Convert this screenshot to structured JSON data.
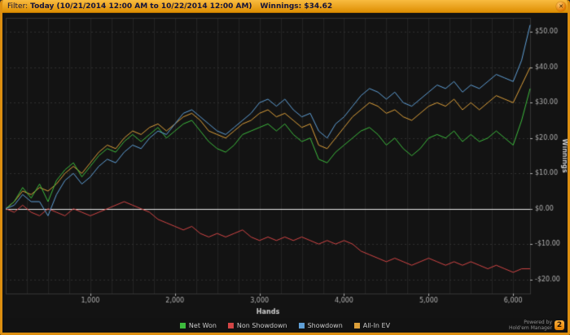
{
  "window": {
    "icons": {
      "close": "✕"
    }
  },
  "filter_bar": {
    "prefix": "Filter:",
    "range": "Today (10/21/2014 12:00 AM to 10/22/2014 12:00 AM)",
    "winnings": "Winnings: $34.62"
  },
  "chart_data": {
    "type": "line",
    "title": "",
    "xlabel": "Hands",
    "ylabel": "Winnings",
    "xlim": [
      0,
      6200
    ],
    "ylim": [
      -24,
      54
    ],
    "x_step": 100,
    "x_ticks": [
      1000,
      2000,
      3000,
      4000,
      5000,
      6000
    ],
    "x_tick_labels": [
      "1,000",
      "2,000",
      "3,000",
      "4,000",
      "5,000",
      "6,000"
    ],
    "y_ticks": [
      -20,
      -10,
      0,
      10,
      20,
      30,
      40,
      50
    ],
    "y_tick_labels": [
      "-$20.00",
      "-$10.00",
      "$0.00",
      "$10.00",
      "$20.00",
      "$30.00",
      "$40.00",
      "$50.00"
    ],
    "grid": true,
    "bg_color": "#131313",
    "grid_v_color": "#232323",
    "grid_h_color": "#303030",
    "zero_line_color": "#e8e8e8",
    "tick_color": "#b0b0b0",
    "axis_title_color": "#d0d0d0",
    "legend_position": "bottom",
    "series": [
      {
        "name": "Net Won",
        "color": "#3dbb3d",
        "values": [
          0,
          2,
          6,
          3,
          7,
          2,
          8,
          11,
          13,
          9,
          12,
          15,
          17,
          16,
          19,
          21,
          19,
          21,
          23,
          20,
          22,
          24,
          25,
          22,
          19,
          17,
          16,
          18,
          21,
          22,
          23,
          24,
          22,
          24,
          21,
          19,
          20,
          14,
          13,
          16,
          18,
          20,
          22,
          23,
          21,
          18,
          20,
          17,
          15,
          17,
          20,
          21,
          20,
          22,
          19,
          21,
          19,
          20,
          22,
          20,
          18,
          25,
          34
        ]
      },
      {
        "name": "Non Showdown",
        "color": "#d24545",
        "values": [
          0,
          -1,
          1,
          -1,
          -2,
          0,
          -1,
          -2,
          0,
          -1,
          -2,
          -1,
          0,
          1,
          2,
          1,
          0,
          -1,
          -3,
          -4,
          -5,
          -6,
          -5,
          -7,
          -8,
          -7,
          -8,
          -7,
          -6,
          -8,
          -9,
          -8,
          -9,
          -8,
          -9,
          -8,
          -9,
          -10,
          -9,
          -10,
          -9,
          -10,
          -12,
          -13,
          -14,
          -15,
          -14,
          -15,
          -16,
          -15,
          -14,
          -15,
          -16,
          -15,
          -16,
          -15,
          -16,
          -17,
          -16,
          -17,
          -18,
          -17,
          -17
        ]
      },
      {
        "name": "Showdown",
        "color": "#5f9fd6",
        "values": [
          0,
          1,
          4,
          2,
          2,
          -2,
          4,
          8,
          10,
          7,
          9,
          12,
          14,
          13,
          16,
          18,
          17,
          20,
          22,
          21,
          24,
          27,
          28,
          26,
          24,
          22,
          21,
          23,
          25,
          27,
          30,
          31,
          29,
          31,
          28,
          26,
          27,
          22,
          20,
          24,
          26,
          29,
          32,
          34,
          33,
          31,
          33,
          30,
          29,
          31,
          33,
          35,
          34,
          36,
          33,
          35,
          34,
          36,
          38,
          37,
          36,
          42,
          52
        ]
      },
      {
        "name": "All-In EV",
        "color": "#dda03a",
        "values": [
          0,
          2,
          5,
          4,
          6,
          5,
          7,
          10,
          12,
          10,
          13,
          16,
          18,
          17,
          20,
          22,
          21,
          23,
          24,
          22,
          24,
          26,
          27,
          25,
          22,
          21,
          20,
          22,
          24,
          25,
          27,
          28,
          26,
          27,
          25,
          23,
          24,
          18,
          17,
          20,
          23,
          26,
          28,
          30,
          29,
          27,
          28,
          26,
          25,
          27,
          29,
          30,
          29,
          31,
          28,
          30,
          28,
          30,
          32,
          31,
          30,
          35,
          40
        ]
      }
    ]
  },
  "footer": {
    "powered_by": "Powered by",
    "brand": "Hold'em Manager",
    "logo_label": "2"
  }
}
